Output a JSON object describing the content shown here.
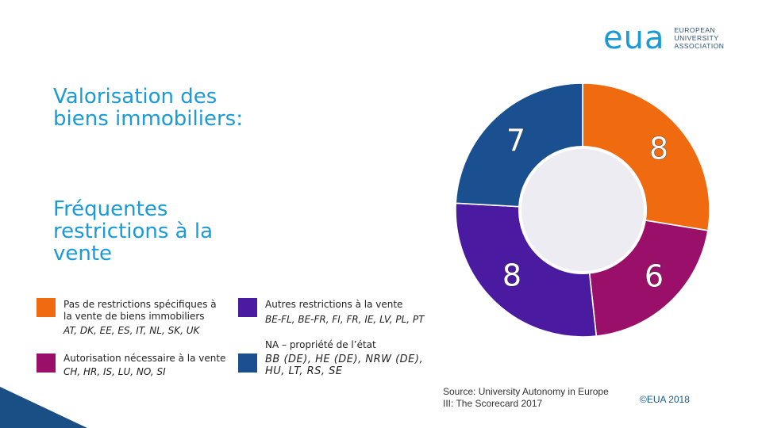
{
  "logo": {
    "mark": "eua",
    "lines": [
      "EUROPEAN",
      "UNIVERSITY",
      "ASSOCIATION"
    ]
  },
  "title": "Valorisation des biens immobiliers:",
  "subtitle": "Fréquentes restrictions à la vente",
  "legend": [
    {
      "label": "Pas de restrictions spécifiques à la vente de biens immobiliers",
      "countries": "AT, DK, EE, ES, IT, NL, SK, UK",
      "color": "#f06a0f"
    },
    {
      "label": "Autorisation nécessaire à la vente",
      "countries": "CH, HR, IS, LU, NO, SI",
      "color": "#9a0f6a"
    },
    {
      "label": "Autres restrictions à la vente",
      "countries": "BE-FL, BE-FR, FI, FR, IE, LV, PL, PT",
      "color": "#4a1aa0"
    },
    {
      "label": "NA – propriété de l’état",
      "countries": "BB (DE), HE (DE), NRW (DE), HU, LT, RS, SE",
      "color": "#1a5090"
    }
  ],
  "chart_data": {
    "type": "pie",
    "donut": true,
    "title": "Valorisation des biens immobiliers",
    "slices": [
      {
        "name": "Pas de restrictions spécifiques à la vente de biens immobiliers",
        "value": 8,
        "label": "8",
        "color": "#f06a0f"
      },
      {
        "name": "Autorisation nécessaire à la vente",
        "value": 6,
        "label": "6",
        "color": "#9a0f6a"
      },
      {
        "name": "Autres restrictions à la vente",
        "value": 8,
        "label": "8",
        "color": "#4a1aa0"
      },
      {
        "name": "NA – propriété de l’état",
        "value": 7,
        "label": "7",
        "color": "#1a5090"
      }
    ]
  },
  "source": "Source: University Autonomy in Europe III: The Scorecard 2017",
  "copyright": "©EUA 2018",
  "accent_color": "#1a9ad6"
}
